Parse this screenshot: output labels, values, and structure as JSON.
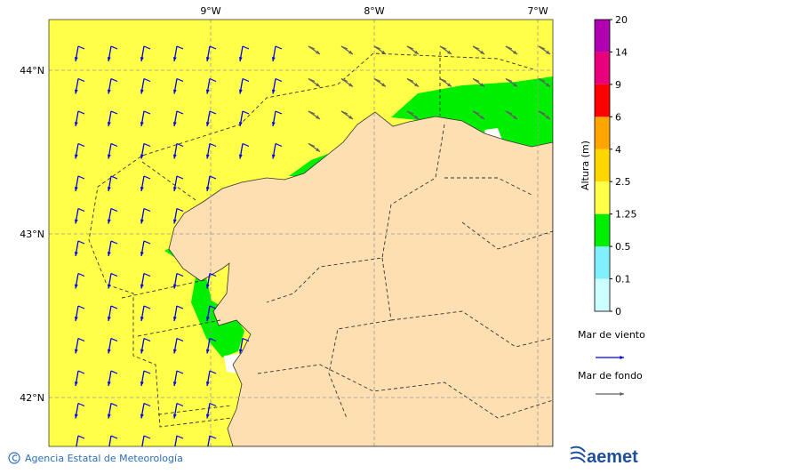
{
  "map": {
    "lon_labels": [
      "9°W",
      "8°W",
      "7°W"
    ],
    "lat_labels": [
      "44°N",
      "43°N",
      "42°N"
    ]
  },
  "colorbar": {
    "title": "Altura (m)",
    "levels": [
      0,
      0.1,
      0.5,
      1.25,
      2.5,
      4,
      6,
      9,
      14,
      20
    ],
    "colors": [
      "#ccffff",
      "#80f0ff",
      "#00ee00",
      "#ffff4a",
      "#ffd700",
      "#ffa500",
      "#ff0000",
      "#e8007a",
      "#b000b0"
    ]
  },
  "legend": [
    {
      "label": "Mar de viento",
      "color": "#0000ee"
    },
    {
      "label": "Mar de fondo",
      "color": "#606060"
    }
  ],
  "footer": {
    "credit": "Agencia Estatal de Meteorología",
    "logo": "aemet"
  }
}
